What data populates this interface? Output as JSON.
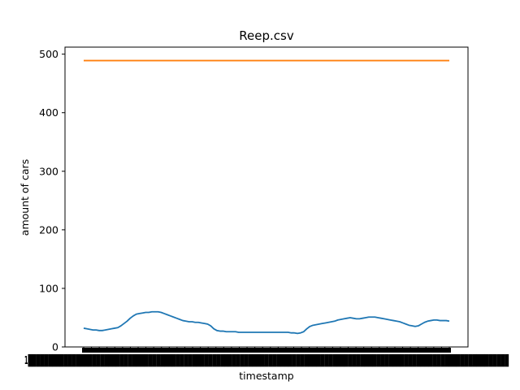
{
  "chart_data": {
    "type": "line",
    "title": "Reep.csv",
    "xlabel": "timestamp",
    "ylabel": "amount of cars",
    "ylim": [
      0,
      512
    ],
    "y_ticks": [
      0,
      100,
      200,
      300,
      400,
      500
    ],
    "grid": false,
    "legend": "none",
    "x_tick_labels_note": "dense overlapping timestamp labels, unreadable",
    "series": [
      {
        "color": "#1f77b4",
        "values": [
          32,
          31,
          30,
          29,
          29,
          28,
          28,
          29,
          30,
          31,
          32,
          33,
          36,
          40,
          44,
          49,
          53,
          56,
          57,
          58,
          59,
          59,
          60,
          60,
          60,
          59,
          57,
          55,
          53,
          51,
          49,
          47,
          45,
          44,
          43,
          43,
          42,
          42,
          41,
          40,
          39,
          36,
          31,
          28,
          27,
          27,
          26,
          26,
          26,
          26,
          25,
          25,
          25,
          25,
          25,
          25,
          25,
          25,
          25,
          25,
          25,
          25,
          25,
          25,
          25,
          25,
          25,
          24,
          24,
          23,
          24,
          26,
          31,
          35,
          37,
          38,
          39,
          40,
          41,
          42,
          43,
          44,
          46,
          47,
          48,
          49,
          50,
          49,
          48,
          48,
          49,
          50,
          51,
          51,
          51,
          50,
          49,
          48,
          47,
          46,
          45,
          44,
          43,
          41,
          39,
          37,
          36,
          35,
          36,
          39,
          42,
          44,
          45,
          46,
          46,
          45,
          45,
          45,
          44
        ]
      },
      {
        "color": "#ff7f0e",
        "values": [
          489,
          489
        ]
      }
    ]
  }
}
